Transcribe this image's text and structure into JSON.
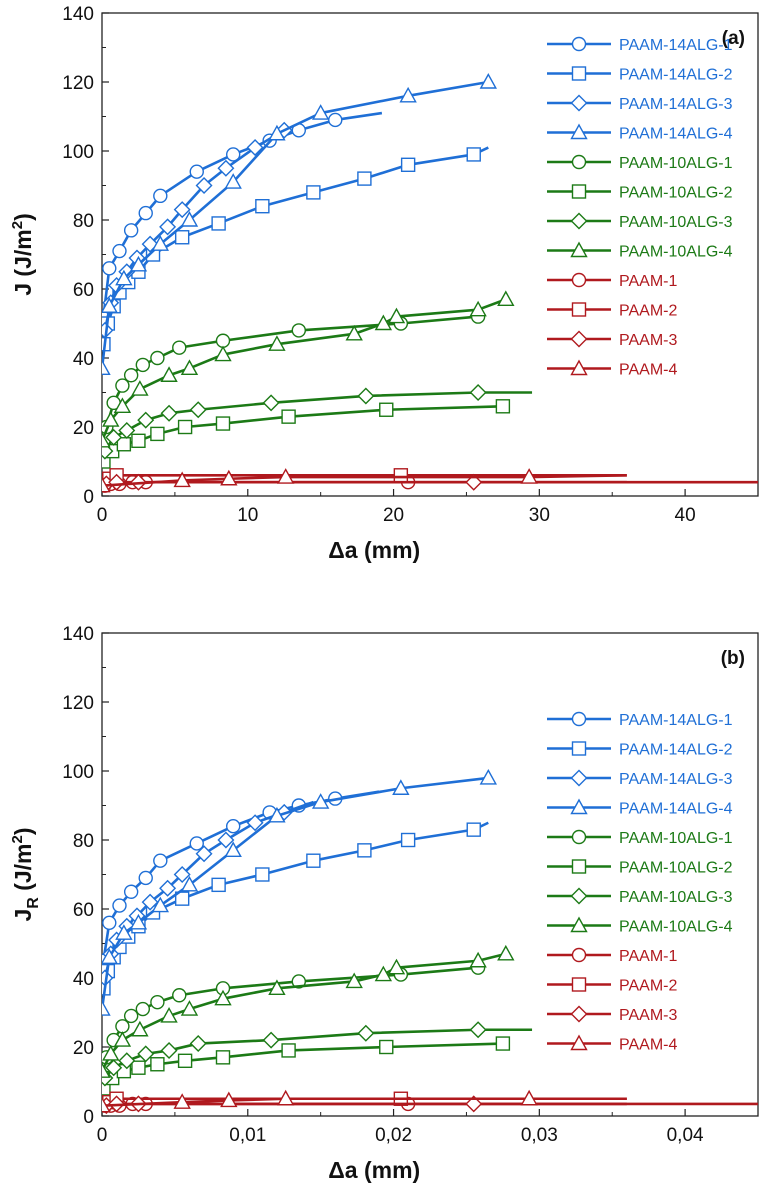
{
  "colors": {
    "PAAM-14ALG": "#1f6fd6",
    "PAAM-10ALG": "#1c7a16",
    "PAAM": "#b0191e"
  },
  "legend_placement": "right",
  "chart_data": [
    {
      "type": "line",
      "panel_label": "(a)",
      "xlabel": "Δa (mm)",
      "ylabel": "J (J/m²)",
      "ylabel_main": "J (J/m",
      "ylabel_sup": "2",
      "ylabel_tail": ")",
      "xlim": [
        0,
        45
      ],
      "ylim": [
        0,
        140
      ],
      "xticks": [
        0,
        10,
        20,
        30,
        40
      ],
      "xtick_labels": [
        "0",
        "10",
        "20",
        "30",
        "40"
      ],
      "yticks": [
        0,
        20,
        40,
        60,
        80,
        100,
        120,
        140
      ],
      "ytick_labels": [
        "0",
        "20",
        "40",
        "60",
        "80",
        "100",
        "120",
        "140"
      ],
      "series": [
        {
          "name": "PAAM-14ALG-1",
          "group": "PAAM-14ALG",
          "marker": "circle",
          "x": [
            0.1,
            0.5,
            1.2,
            2.0,
            3.0,
            4.0,
            6.5,
            9.0,
            11.5,
            13.5,
            16.0
          ],
          "y": [
            52,
            66,
            71,
            77,
            82,
            87,
            94,
            99,
            103,
            106,
            109
          ],
          "curve_end": [
            19.2,
            111
          ]
        },
        {
          "name": "PAAM-14ALG-2",
          "group": "PAAM-14ALG",
          "marker": "square",
          "x": [
            0.1,
            0.4,
            0.8,
            1.2,
            1.8,
            2.5,
            3.5,
            5.5,
            8.0,
            11.0,
            14.5,
            18.0,
            21.0,
            25.5
          ],
          "y": [
            44,
            50,
            55,
            59,
            62,
            65,
            70,
            75,
            79,
            84,
            88,
            92,
            96,
            99
          ],
          "curve_end": [
            26.5,
            101
          ]
        },
        {
          "name": "PAAM-14ALG-3",
          "group": "PAAM-14ALG",
          "marker": "diamond",
          "x": [
            0.2,
            0.6,
            1.0,
            1.7,
            2.4,
            3.3,
            4.5,
            5.5,
            7.0,
            8.5,
            10.5,
            12.5
          ],
          "y": [
            48,
            56,
            61,
            65,
            69,
            73,
            78,
            83,
            90,
            95,
            101,
            106
          ],
          "curve_end": [
            12.5,
            106
          ]
        },
        {
          "name": "PAAM-14ALG-4",
          "group": "PAAM-14ALG",
          "marker": "triangle",
          "x": [
            0.0,
            0.5,
            1.5,
            2.5,
            4.0,
            6.0,
            9.0,
            12.0,
            15.0,
            21.0,
            26.5
          ],
          "y": [
            37,
            55,
            63,
            67,
            73,
            80,
            91,
            105,
            111,
            116,
            120
          ],
          "curve_end": [
            26.5,
            120
          ]
        },
        {
          "name": "PAAM-10ALG-1",
          "group": "PAAM-10ALG",
          "marker": "circle",
          "x": [
            0.3,
            0.8,
            1.4,
            2.0,
            2.8,
            3.8,
            5.3,
            8.3,
            13.5,
            20.5,
            25.8
          ],
          "y": [
            20,
            27,
            32,
            35,
            38,
            40,
            43,
            45,
            48,
            50,
            52
          ],
          "curve_end": [
            25.8,
            52
          ]
        },
        {
          "name": "PAAM-10ALG-2",
          "group": "PAAM-10ALG",
          "marker": "square",
          "x": [
            0.1,
            0.7,
            1.5,
            2.5,
            3.8,
            5.7,
            8.3,
            12.8,
            19.5,
            27.5
          ],
          "y": [
            10,
            13,
            15,
            16,
            18,
            20,
            21,
            23,
            25,
            26
          ],
          "curve_end": [
            27.5,
            26
          ]
        },
        {
          "name": "PAAM-10ALG-3",
          "group": "PAAM-10ALG",
          "marker": "diamond",
          "x": [
            0.2,
            0.8,
            1.7,
            3.0,
            4.6,
            6.6,
            11.6,
            18.1,
            25.8
          ],
          "y": [
            13,
            17,
            19,
            22,
            24,
            25,
            27,
            29,
            30
          ],
          "curve_end": [
            29.5,
            30
          ]
        },
        {
          "name": "PAAM-10ALG-4",
          "group": "PAAM-10ALG",
          "marker": "triangle",
          "x": [
            0.0,
            0.6,
            1.4,
            2.6,
            4.6,
            6.0,
            8.3,
            12.0,
            17.3,
            19.3,
            20.2,
            25.8,
            27.7
          ],
          "y": [
            16,
            22,
            26,
            31,
            35,
            37,
            41,
            44,
            47,
            50,
            52,
            54,
            57
          ],
          "curve_end": [
            27.7,
            57
          ]
        },
        {
          "name": "PAAM-1",
          "group": "PAAM",
          "marker": "circle",
          "x": [
            0.2,
            0.6,
            1.2,
            2.1,
            3.0,
            21.0
          ],
          "y": [
            3,
            3.5,
            3.5,
            4,
            4,
            4
          ],
          "curve_end": [
            45,
            4
          ]
        },
        {
          "name": "PAAM-2",
          "group": "PAAM",
          "marker": "square",
          "x": [
            0.1,
            0.5,
            1.0,
            20.5
          ],
          "y": [
            4,
            5,
            6,
            6
          ],
          "curve_end": [
            36,
            6
          ]
        },
        {
          "name": "PAAM-3",
          "group": "PAAM",
          "marker": "diamond",
          "x": [
            0.3,
            1.0,
            2.5,
            25.5
          ],
          "y": [
            3.5,
            4,
            4,
            4
          ],
          "curve_end": [
            36,
            4
          ]
        },
        {
          "name": "PAAM-4",
          "group": "PAAM",
          "marker": "triangle",
          "x": [
            0.0,
            5.5,
            8.7,
            12.6,
            29.3
          ],
          "y": [
            3,
            4.5,
            5,
            5.5,
            5.5
          ],
          "curve_end": [
            36,
            6
          ]
        }
      ]
    },
    {
      "type": "line",
      "panel_label": "(b)",
      "xlabel": "Δa (mm)",
      "ylabel": "J_R (J/m²)",
      "ylabel_main": "J",
      "ylabel_sub": "R",
      "ylabel_rest": " (J/m",
      "ylabel_sup": "2",
      "ylabel_tail": ")",
      "xlim": [
        0,
        0.045
      ],
      "ylim": [
        0,
        140
      ],
      "xticks": [
        0,
        0.01,
        0.02,
        0.03,
        0.04
      ],
      "xtick_labels": [
        "0",
        "0,01",
        "0,02",
        "0,03",
        "0,04"
      ],
      "yticks": [
        0,
        20,
        40,
        60,
        80,
        100,
        120,
        140
      ],
      "ytick_labels": [
        "0",
        "20",
        "40",
        "60",
        "80",
        "100",
        "120",
        "140"
      ],
      "series": [
        {
          "name": "PAAM-14ALG-1",
          "group": "PAAM-14ALG",
          "marker": "circle",
          "x": [
            0.0001,
            0.0005,
            0.0012,
            0.002,
            0.003,
            0.004,
            0.0065,
            0.009,
            0.0115,
            0.0135,
            0.016
          ],
          "y": [
            45,
            56,
            61,
            65,
            69,
            74,
            79,
            84,
            88,
            90,
            92
          ],
          "curve_end": [
            0.019,
            94
          ]
        },
        {
          "name": "PAAM-14ALG-2",
          "group": "PAAM-14ALG",
          "marker": "square",
          "x": [
            0.0001,
            0.0004,
            0.0008,
            0.0012,
            0.0018,
            0.0025,
            0.0035,
            0.0055,
            0.008,
            0.011,
            0.0145,
            0.018,
            0.021,
            0.0255
          ],
          "y": [
            37,
            42,
            46,
            49,
            52,
            55,
            59,
            63,
            67,
            70,
            74,
            77,
            80,
            83
          ],
          "curve_end": [
            0.0265,
            85
          ]
        },
        {
          "name": "PAAM-14ALG-3",
          "group": "PAAM-14ALG",
          "marker": "diamond",
          "x": [
            0.0002,
            0.0006,
            0.001,
            0.0017,
            0.0024,
            0.0033,
            0.0045,
            0.0055,
            0.007,
            0.0085,
            0.0105,
            0.0125
          ],
          "y": [
            40,
            47,
            51,
            55,
            58,
            62,
            66,
            70,
            76,
            80,
            85,
            88
          ],
          "curve_end": [
            0.0145,
            91
          ]
        },
        {
          "name": "PAAM-14ALG-4",
          "group": "PAAM-14ALG",
          "marker": "triangle",
          "x": [
            0.0,
            0.0005,
            0.0015,
            0.0025,
            0.004,
            0.006,
            0.009,
            0.012,
            0.015,
            0.0205,
            0.0265
          ],
          "y": [
            31,
            46,
            53,
            56,
            61,
            67,
            77,
            87,
            91,
            95,
            98
          ],
          "curve_end": [
            0.0265,
            98
          ]
        },
        {
          "name": "PAAM-10ALG-1",
          "group": "PAAM-10ALG",
          "marker": "circle",
          "x": [
            0.0003,
            0.0008,
            0.0014,
            0.002,
            0.0028,
            0.0038,
            0.0053,
            0.0083,
            0.0135,
            0.0205,
            0.0258
          ],
          "y": [
            17,
            22,
            26,
            29,
            31,
            33,
            35,
            37,
            39,
            41,
            43
          ],
          "curve_end": [
            0.0258,
            43
          ]
        },
        {
          "name": "PAAM-10ALG-2",
          "group": "PAAM-10ALG",
          "marker": "square",
          "x": [
            0.0001,
            0.0007,
            0.0015,
            0.0025,
            0.0038,
            0.0057,
            0.0083,
            0.0128,
            0.0195,
            0.0275
          ],
          "y": [
            8,
            11,
            13,
            14,
            15,
            16,
            17,
            19,
            20,
            21
          ],
          "curve_end": [
            0.0275,
            21
          ]
        },
        {
          "name": "PAAM-10ALG-3",
          "group": "PAAM-10ALG",
          "marker": "diamond",
          "x": [
            0.0002,
            0.0008,
            0.0017,
            0.003,
            0.0046,
            0.0066,
            0.0116,
            0.0181,
            0.0258
          ],
          "y": [
            11,
            14,
            16,
            18,
            19,
            21,
            22,
            24,
            25
          ],
          "curve_end": [
            0.0295,
            25
          ]
        },
        {
          "name": "PAAM-10ALG-4",
          "group": "PAAM-10ALG",
          "marker": "triangle",
          "x": [
            0.0,
            0.0006,
            0.0014,
            0.0026,
            0.0046,
            0.006,
            0.0083,
            0.012,
            0.0173,
            0.0193,
            0.0202,
            0.0258,
            0.0277
          ],
          "y": [
            13,
            18,
            22,
            25,
            29,
            31,
            34,
            37,
            39,
            41,
            43,
            45,
            47
          ],
          "curve_end": [
            0.0277,
            47
          ]
        },
        {
          "name": "PAAM-1",
          "group": "PAAM",
          "marker": "circle",
          "x": [
            0.0002,
            0.0006,
            0.0012,
            0.0021,
            0.003,
            0.021
          ],
          "y": [
            3,
            3,
            3,
            3.5,
            3.5,
            3.5
          ],
          "curve_end": [
            0.045,
            3.5
          ]
        },
        {
          "name": "PAAM-2",
          "group": "PAAM",
          "marker": "square",
          "x": [
            0.0001,
            0.0005,
            0.001,
            0.0205
          ],
          "y": [
            3.5,
            4,
            5,
            5
          ],
          "curve_end": [
            0.036,
            5
          ]
        },
        {
          "name": "PAAM-3",
          "group": "PAAM",
          "marker": "diamond",
          "x": [
            0.0003,
            0.001,
            0.0025,
            0.0255
          ],
          "y": [
            3,
            3.5,
            3.5,
            3.5
          ],
          "curve_end": [
            0.036,
            3.5
          ]
        },
        {
          "name": "PAAM-4",
          "group": "PAAM",
          "marker": "triangle",
          "x": [
            0.0,
            0.0055,
            0.0087,
            0.0126,
            0.0293
          ],
          "y": [
            3,
            4,
            4.5,
            5,
            5
          ],
          "curve_end": [
            0.036,
            5
          ]
        }
      ]
    }
  ]
}
